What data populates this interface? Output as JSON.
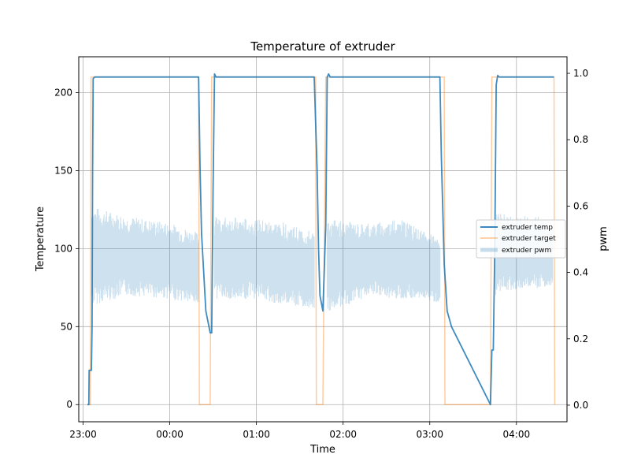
{
  "chart_data": {
    "type": "line",
    "title": "Temperature of extruder",
    "xlabel": "Time",
    "ylabel": "Temperature",
    "y2label": "pwm",
    "x_ticks": [
      "23:00",
      "00:00",
      "01:00",
      "02:00",
      "03:00",
      "04:00"
    ],
    "y_ticks": [
      0,
      50,
      100,
      150,
      200
    ],
    "y2_ticks": [
      "0.0",
      "0.2",
      "0.4",
      "0.6",
      "0.8",
      "1.0"
    ],
    "xlim": [
      "22:57",
      "04:35"
    ],
    "ylim": [
      -11,
      223
    ],
    "y2lim": [
      -0.05,
      1.05
    ],
    "grid": true,
    "legend_position": "right",
    "colors": {
      "temp": "#1f77b4",
      "target": "#ff7f0e",
      "pwm": "#1f77b4"
    },
    "series": [
      {
        "name": "extruder temp",
        "axis": "left",
        "x": [
          "23:03",
          "23:04",
          "23:04.2",
          "23:04.5",
          "23:04.8",
          "23:05",
          "23:05.4",
          "23:05.8",
          "23:06.2",
          "23:06.6",
          "23:07",
          "23:08",
          "23:10",
          "23:20",
          "23:40",
          "00:00",
          "00:20",
          "00:21",
          "00:22",
          "00:25",
          "00:28",
          "00:29",
          "00:30",
          "00:31",
          "00:32",
          "00:33",
          "00:34",
          "00:40",
          "00:50",
          "01:00",
          "01:20",
          "01:40",
          "01:42",
          "01:43",
          "01:44",
          "01:46",
          "01:48",
          "01:49",
          "01:50",
          "01:51",
          "01:52",
          "01:53",
          "02:00",
          "02:20",
          "02:40",
          "03:00",
          "03:07",
          "03:08",
          "03:10",
          "03:12",
          "03:15",
          "03:42",
          "03:43",
          "03:44",
          "03:45",
          "03:46",
          "03:47",
          "03:48",
          "03:55",
          "04:10",
          "04:20",
          "04:26"
        ],
        "values": [
          0,
          0,
          22,
          22,
          22,
          22,
          22,
          22,
          50,
          150,
          209,
          210,
          210,
          210,
          210,
          210,
          210,
          150,
          110,
          60,
          46,
          46,
          140,
          212,
          210,
          210,
          210,
          210,
          210,
          210,
          210,
          210,
          150,
          100,
          70,
          60,
          115,
          210,
          212,
          210,
          210,
          210,
          210,
          210,
          210,
          210,
          210,
          160,
          90,
          60,
          50,
          0,
          35,
          35,
          100,
          205,
          211,
          210,
          210,
          210,
          210,
          210
        ]
      },
      {
        "name": "extruder target",
        "axis": "left",
        "x": [
          "23:03",
          "23:05",
          "23:05.5",
          "23:06",
          "00:20",
          "00:20.5",
          "00:28",
          "00:29",
          "00:30",
          "01:41",
          "01:41.5",
          "01:46",
          "01:48",
          "03:10",
          "03:10.5",
          "03:42",
          "03:43",
          "04:26",
          "04:26.5"
        ],
        "values": [
          0,
          0,
          210,
          210,
          210,
          0,
          0,
          210,
          210,
          210,
          0,
          0,
          210,
          210,
          0,
          0,
          210,
          210,
          0
        ]
      },
      {
        "name": "extruder pwm",
        "axis": "right",
        "band": true,
        "segments": [
          {
            "x": [
              "23:06",
              "23:30",
              "00:00",
              "00:20"
            ],
            "high": [
              0.6,
              0.57,
              0.55,
              0.52
            ],
            "low": [
              0.3,
              0.33,
              0.32,
              0.3
            ]
          },
          {
            "x": [
              "00:31",
              "01:00",
              "01:20",
              "01:40"
            ],
            "high": [
              0.57,
              0.56,
              0.55,
              0.52
            ],
            "low": [
              0.32,
              0.32,
              0.3,
              0.29
            ]
          },
          {
            "x": [
              "01:49",
              "02:20",
              "02:40",
              "03:07"
            ],
            "high": [
              0.56,
              0.55,
              0.56,
              0.5
            ],
            "low": [
              0.28,
              0.33,
              0.32,
              0.31
            ]
          },
          {
            "x": [
              "03:45",
              "04:00",
              "04:15",
              "04:25"
            ],
            "high": [
              0.58,
              0.57,
              0.57,
              0.55
            ],
            "low": [
              0.33,
              0.35,
              0.35,
              0.36
            ]
          }
        ]
      }
    ]
  }
}
